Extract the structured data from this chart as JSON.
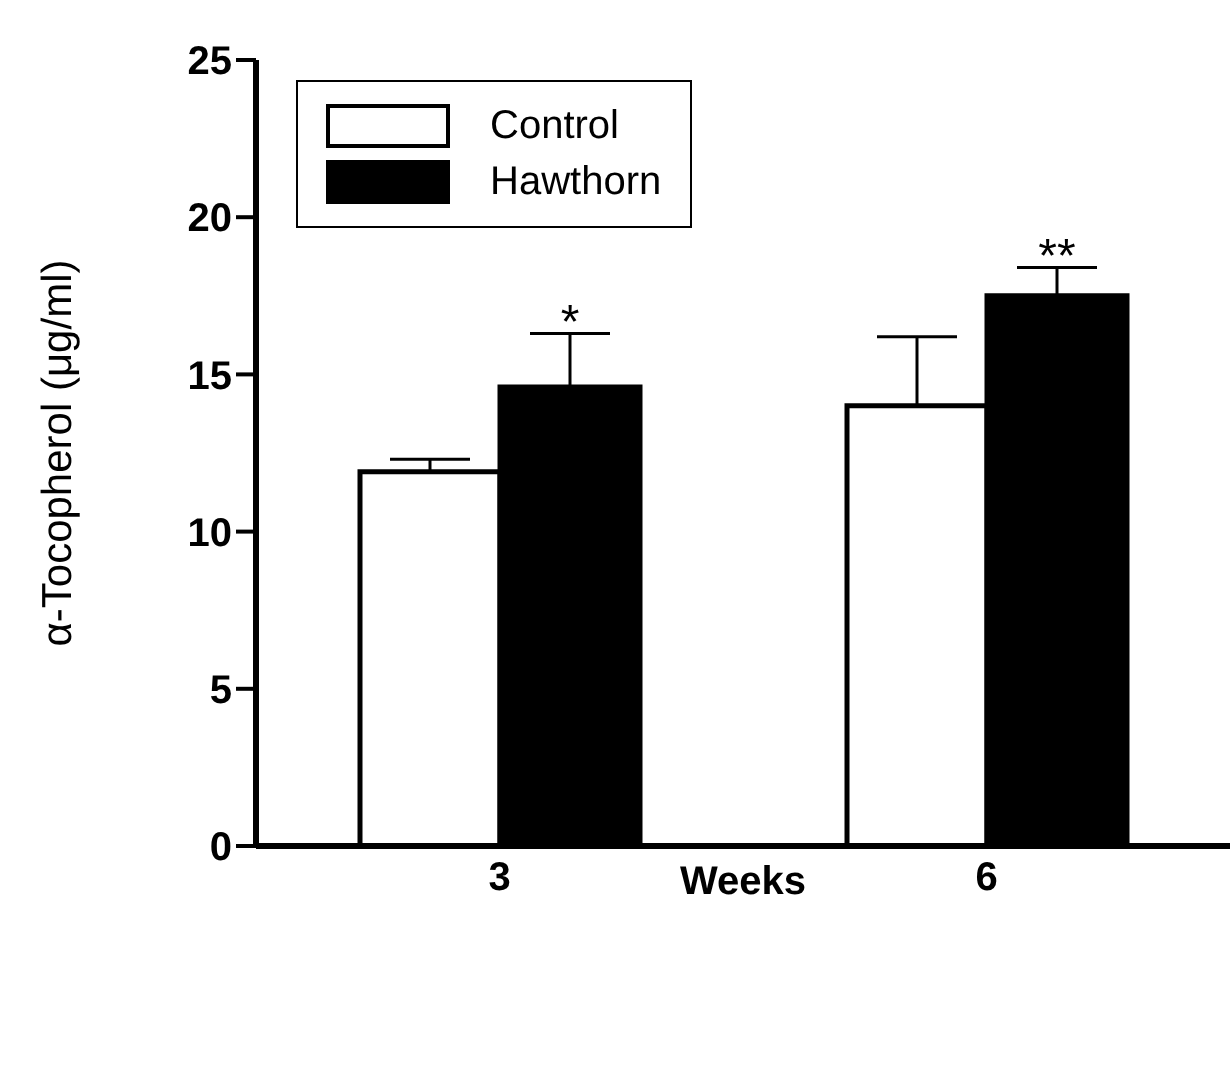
{
  "chart_data": {
    "type": "bar",
    "categories": [
      "3",
      "6"
    ],
    "xlabel": "Weeks",
    "ylabel": "α-Tocopherol (μg/ml)",
    "series": [
      {
        "name": "Control",
        "color": "#ffffff",
        "values": [
          11.9,
          14.0
        ],
        "errors": [
          [
            11.9,
            12.3
          ],
          [
            14.0,
            16.2
          ]
        ]
      },
      {
        "name": "Hawthorn",
        "color": "#000000",
        "values": [
          14.6,
          17.5
        ],
        "errors": [
          [
            14.6,
            16.3
          ],
          [
            17.5,
            18.4
          ]
        ]
      }
    ],
    "annotations": [
      "*",
      "**"
    ],
    "ylim": [
      0,
      25
    ],
    "yticks": [
      0,
      5,
      10,
      15,
      20,
      25
    ],
    "legend": "top left"
  }
}
